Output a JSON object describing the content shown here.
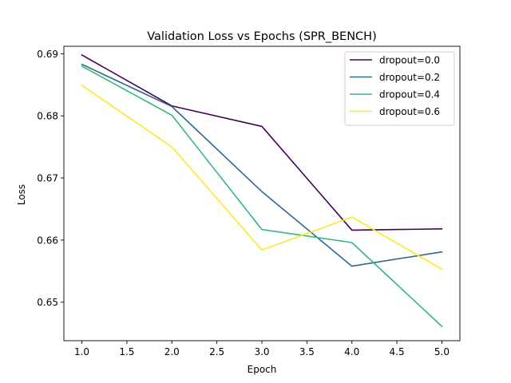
{
  "chart_data": {
    "type": "line",
    "title": "Validation Loss vs Epochs (SPR_BENCH)",
    "xlabel": "Epoch",
    "ylabel": "Loss",
    "xlim": [
      0.8,
      5.2
    ],
    "ylim": [
      0.6438,
      0.6912
    ],
    "xticks": [
      1.0,
      1.5,
      2.0,
      2.5,
      3.0,
      3.5,
      4.0,
      4.5,
      5.0
    ],
    "xtick_labels": [
      "1.0",
      "1.5",
      "2.0",
      "2.5",
      "3.0",
      "3.5",
      "4.0",
      "4.5",
      "5.0"
    ],
    "yticks": [
      0.65,
      0.66,
      0.67,
      0.68,
      0.69
    ],
    "ytick_labels": [
      "0.65",
      "0.66",
      "0.67",
      "0.68",
      "0.69"
    ],
    "grid": false,
    "legend_position": "top-right",
    "x": [
      1,
      2,
      3,
      4,
      5
    ],
    "series": [
      {
        "name": "dropout=0.0",
        "color": "#440154",
        "values": [
          0.6898,
          0.6816,
          0.6783,
          0.6616,
          0.6618
        ]
      },
      {
        "name": "dropout=0.2",
        "color": "#31688e",
        "values": [
          0.6883,
          0.6815,
          0.6678,
          0.6558,
          0.6581
        ]
      },
      {
        "name": "dropout=0.4",
        "color": "#35b779",
        "values": [
          0.688,
          0.6801,
          0.6617,
          0.6596,
          0.6461
        ]
      },
      {
        "name": "dropout=0.6",
        "color": "#fde725",
        "values": [
          0.6849,
          0.675,
          0.6584,
          0.6637,
          0.6553
        ]
      }
    ]
  }
}
